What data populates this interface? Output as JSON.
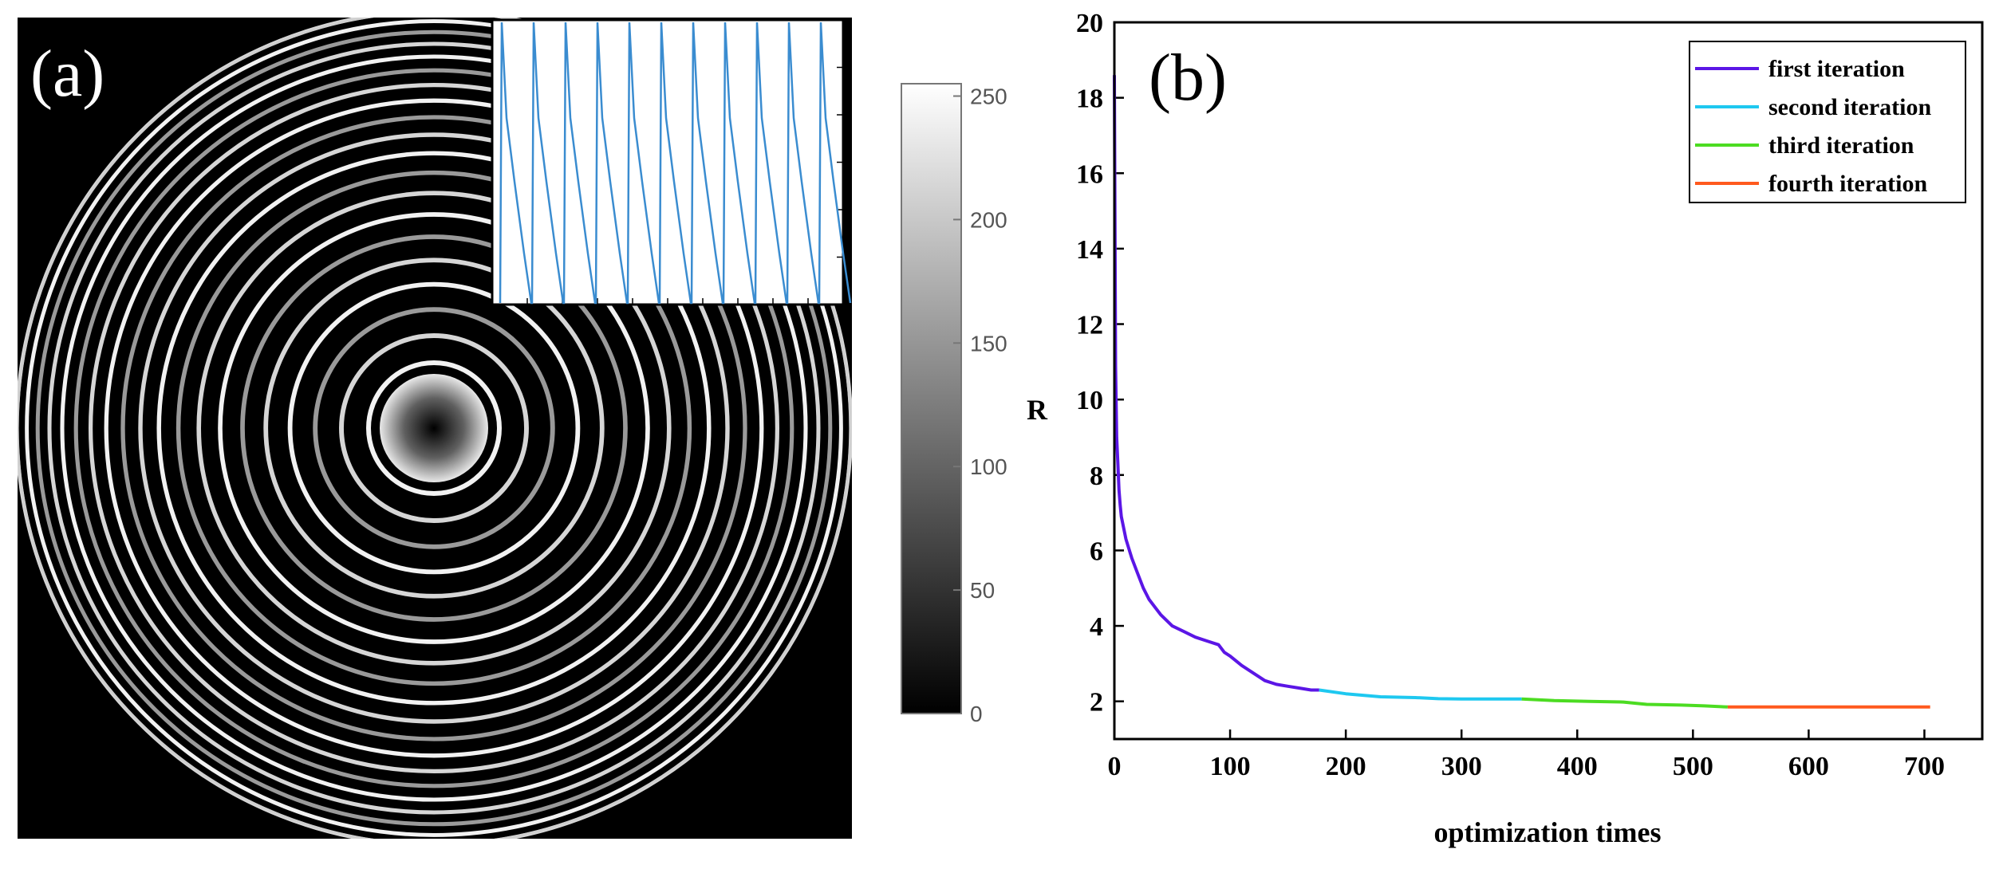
{
  "panel_a": {
    "label": "(a)",
    "colorbar": {
      "min": 0,
      "max": 255,
      "ticks": [
        0,
        50,
        100,
        150,
        200,
        250
      ]
    }
  },
  "panel_b": {
    "label": "(b)"
  },
  "chart_data": {
    "type": "line",
    "title": "",
    "xlabel": "optimization times",
    "ylabel": "R",
    "xlim": [
      0,
      750
    ],
    "ylim": [
      1,
      20
    ],
    "xticks": [
      0,
      100,
      200,
      300,
      400,
      500,
      600,
      700
    ],
    "yticks": [
      2,
      4,
      6,
      8,
      10,
      12,
      14,
      16,
      18,
      20
    ],
    "legend_position": "top-right",
    "series": [
      {
        "name": "first iteration",
        "color": "#5b16e6",
        "x": [
          0,
          1,
          2,
          3,
          4,
          5,
          6,
          8,
          10,
          12,
          15,
          20,
          25,
          30,
          40,
          50,
          60,
          70,
          80,
          90,
          95,
          100,
          110,
          120,
          130,
          140,
          150,
          160,
          170,
          177
        ],
        "y": [
          18.6,
          10.9,
          9.0,
          8.3,
          7.6,
          7.2,
          6.9,
          6.6,
          6.3,
          6.1,
          5.8,
          5.4,
          5.0,
          4.7,
          4.3,
          4.0,
          3.85,
          3.7,
          3.6,
          3.5,
          3.3,
          3.2,
          2.95,
          2.75,
          2.55,
          2.45,
          2.4,
          2.35,
          2.3,
          2.3
        ]
      },
      {
        "name": "second iteration",
        "color": "#1ec8f0",
        "x": [
          177,
          200,
          230,
          260,
          280,
          300,
          330,
          352
        ],
        "y": [
          2.3,
          2.2,
          2.12,
          2.1,
          2.07,
          2.06,
          2.06,
          2.06
        ]
      },
      {
        "name": "third iteration",
        "color": "#4cdc22",
        "x": [
          352,
          380,
          410,
          440,
          460,
          490,
          510,
          530
        ],
        "y": [
          2.06,
          2.02,
          2.0,
          1.98,
          1.92,
          1.9,
          1.88,
          1.85
        ]
      },
      {
        "name": "fourth iteration",
        "color": "#ff5a1e",
        "x": [
          530,
          560,
          600,
          650,
          705
        ],
        "y": [
          1.85,
          1.85,
          1.85,
          1.85,
          1.85
        ]
      }
    ]
  }
}
